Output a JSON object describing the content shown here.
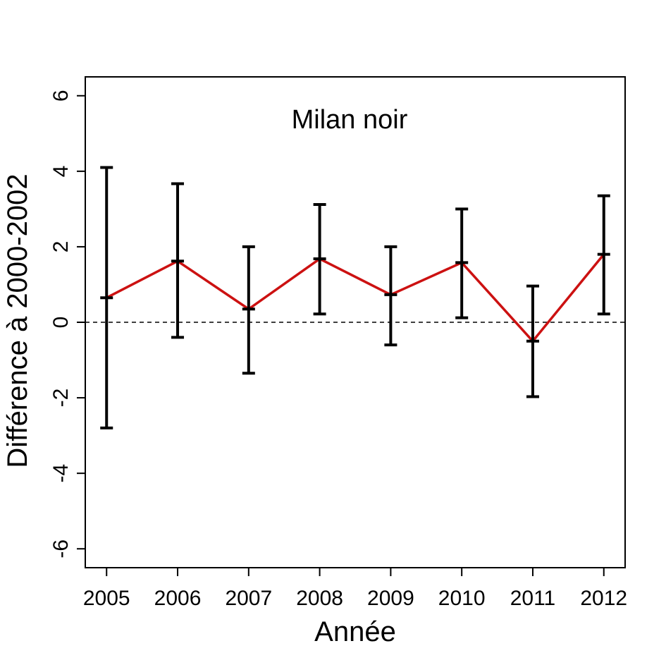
{
  "chart_data": {
    "type": "line",
    "title": "Milan noir",
    "xlabel": "Année",
    "ylabel": "Différence à 2000-2002",
    "x": [
      2005,
      2006,
      2007,
      2008,
      2009,
      2010,
      2011,
      2012
    ],
    "x_tick_labels": [
      "2005",
      "2006",
      "2007",
      "2008",
      "2009",
      "2010",
      "2011",
      "2012"
    ],
    "y_ticks": [
      -6,
      -4,
      -2,
      0,
      2,
      4,
      6
    ],
    "y_tick_labels": [
      "-6",
      "-4",
      "-2",
      "0",
      "2",
      "4",
      "6"
    ],
    "ylim": [
      -6.5,
      6.5
    ],
    "xlim": [
      2004.7,
      2012.3
    ],
    "reference_line": {
      "y": 0,
      "style": "dashed"
    },
    "grid": false,
    "series": [
      {
        "values": [
          0.65,
          1.62,
          0.35,
          1.68,
          0.73,
          1.58,
          -0.5,
          1.8
        ],
        "lower": [
          -2.8,
          -0.4,
          -1.35,
          0.22,
          -0.6,
          0.12,
          -1.97,
          0.22
        ],
        "upper": [
          4.1,
          3.67,
          2.0,
          3.12,
          2.0,
          3.0,
          0.96,
          3.35
        ],
        "color": "#cc1111",
        "errorbar_color": "#000000"
      }
    ]
  }
}
